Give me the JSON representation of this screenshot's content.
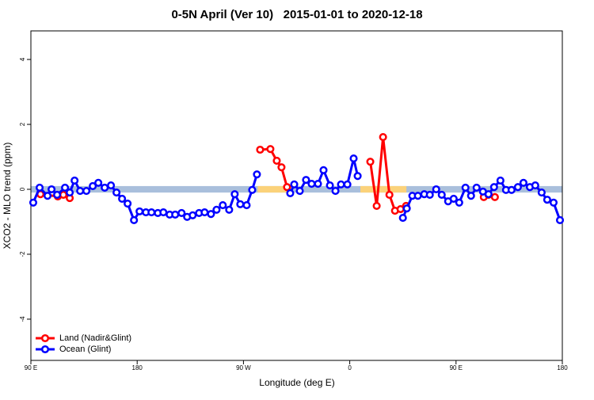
{
  "chart_data": {
    "type": "line",
    "title": "0-5N April (Ver 10)   2015-01-01 to 2020-12-18",
    "x_label": "Longitude (deg E)",
    "y_label": "XCO2 - MLO trend (ppm)",
    "xlim": [
      90,
      540
    ],
    "ylim": [
      -5.27,
      4.88
    ],
    "xticks": [
      {
        "value": 90,
        "label": "90 E"
      },
      180,
      {
        "value": 270,
        "label": "90 W"
      },
      {
        "value": 360,
        "label": "0"
      },
      {
        "value": 450,
        "label": "90 E"
      },
      {
        "value": 540,
        "label": "180"
      }
    ],
    "yticks": [
      -4,
      -2,
      0,
      2,
      4
    ],
    "zero_band": {
      "ymin": -0.1,
      "ymax": 0.1,
      "color": "#a9bfdc"
    },
    "land_bands": {
      "color": "#fbd27a",
      "ranges": [
        [
          282,
          312
        ],
        [
          369,
          408
        ]
      ]
    },
    "legend": "bottom-left",
    "series": [
      {
        "name": "Land (Nadir&Glint)",
        "color": "#ff0000",
        "x": [
          98.1,
          112.8,
          117.5,
          122.9,
          null,
          284.1,
          292.8,
          298.2,
          302.2,
          306.9,
          null,
          377.4,
          382.8,
          388.2,
          393.6,
          398.3,
          403.0,
          407.7,
          null,
          473.5,
          477.5,
          482.9
        ],
        "values": [
          -0.15,
          -0.22,
          -0.17,
          -0.27,
          null,
          1.22,
          1.24,
          0.88,
          0.68,
          0.07,
          null,
          0.85,
          -0.51,
          1.61,
          -0.17,
          -0.66,
          -0.61,
          -0.51,
          null,
          -0.24,
          -0.17,
          -0.24
        ]
      },
      {
        "name": "Ocean (Glint)",
        "color": "#0000ff",
        "x": [
          92.0,
          97.4,
          104.1,
          107.5,
          112.2,
          118.9,
          122.9,
          127.0,
          131.7,
          137.0,
          142.4,
          147.1,
          152.5,
          157.8,
          162.5,
          167.2,
          171.9,
          177.3,
          182.0,
          187.4,
          192.1,
          197.5,
          202.2,
          207.5,
          212.2,
          217.6,
          222.3,
          227.0,
          232.4,
          237.1,
          242.5,
          247.2,
          252.5,
          257.9,
          262.6,
          267.3,
          272.7,
          277.4,
          281.4,
          null,
          309.6,
          313.0,
          317.7,
          323.0,
          327.7,
          333.1,
          337.8,
          343.2,
          347.9,
          352.6,
          358.0,
          363.3,
          366.7,
          null,
          405.0,
          408.3,
          413.0,
          417.7,
          423.1,
          427.8,
          433.2,
          437.9,
          443.3,
          448.0,
          452.7,
          458.0,
          462.7,
          467.4,
          472.8,
          477.5,
          482.2,
          487.6,
          492.3,
          497.0,
          502.4,
          507.1,
          512.5,
          517.1,
          522.5,
          527.2,
          532.6,
          538.0
        ],
        "values": [
          -0.41,
          0.05,
          -0.2,
          0.0,
          -0.17,
          0.05,
          -0.1,
          0.27,
          -0.05,
          -0.05,
          0.1,
          0.2,
          0.05,
          0.12,
          -0.1,
          -0.29,
          -0.44,
          -0.95,
          -0.68,
          -0.71,
          -0.71,
          -0.73,
          -0.71,
          -0.78,
          -0.78,
          -0.73,
          -0.85,
          -0.8,
          -0.73,
          -0.71,
          -0.76,
          -0.63,
          -0.49,
          -0.63,
          -0.15,
          -0.46,
          -0.49,
          -0.02,
          0.46,
          null,
          -0.12,
          0.15,
          -0.05,
          0.29,
          0.17,
          0.17,
          0.59,
          0.12,
          -0.05,
          0.15,
          0.15,
          0.95,
          0.41,
          null,
          -0.88,
          -0.59,
          -0.2,
          -0.2,
          -0.15,
          -0.17,
          0.0,
          -0.17,
          -0.37,
          -0.29,
          -0.41,
          0.05,
          -0.2,
          0.05,
          -0.07,
          -0.15,
          0.07,
          0.27,
          -0.02,
          -0.02,
          0.07,
          0.2,
          0.07,
          0.12,
          -0.1,
          -0.32,
          -0.41,
          -0.95
        ]
      }
    ]
  }
}
